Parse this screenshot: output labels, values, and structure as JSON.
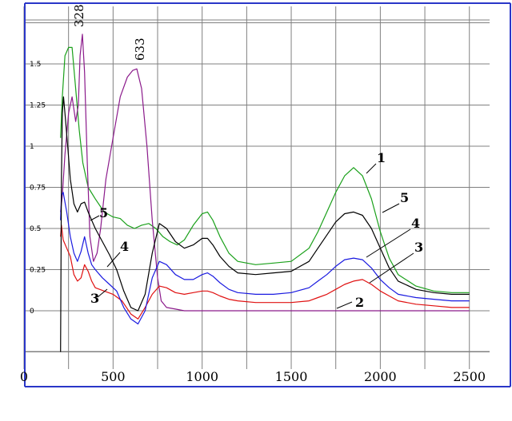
{
  "chart_data": {
    "type": "line",
    "title": "",
    "xlabel": "",
    "ylabel": "",
    "xlim": [
      0,
      2600
    ],
    "ylim": [
      -0.3,
      1.85
    ],
    "grid": true,
    "x_ticks": [
      "0",
      "500",
      "1000",
      "1500",
      "2000",
      "2500"
    ],
    "x_tick_values": [
      0,
      500,
      1000,
      1500,
      2000,
      2500
    ],
    "y_ticks": [
      "1.5",
      "1.25",
      "1",
      "0.75",
      "0.5",
      "0.25",
      "0"
    ],
    "y_tick_values": [
      1.5,
      1.25,
      1,
      0.75,
      0.5,
      0.25,
      0
    ],
    "series": [
      {
        "name": "1",
        "color": "#1aa01a",
        "x": [
          205,
          215,
          230,
          250,
          270,
          290,
          310,
          330,
          360,
          400,
          450,
          500,
          540,
          580,
          620,
          660,
          700,
          740,
          780,
          820,
          860,
          900,
          950,
          1000,
          1030,
          1060,
          1100,
          1150,
          1200,
          1300,
          1400,
          1500,
          1600,
          1650,
          1700,
          1750,
          1800,
          1850,
          1900,
          1950,
          2000,
          2050,
          2100,
          2200,
          2300,
          2400,
          2500
        ],
        "y": [
          1.05,
          1.3,
          1.55,
          1.6,
          1.6,
          1.35,
          1.1,
          0.9,
          0.75,
          0.68,
          0.6,
          0.57,
          0.56,
          0.52,
          0.5,
          0.52,
          0.53,
          0.5,
          0.45,
          0.42,
          0.4,
          0.43,
          0.52,
          0.59,
          0.6,
          0.55,
          0.45,
          0.35,
          0.3,
          0.28,
          0.29,
          0.3,
          0.38,
          0.48,
          0.6,
          0.72,
          0.82,
          0.87,
          0.82,
          0.68,
          0.48,
          0.32,
          0.22,
          0.15,
          0.12,
          0.11,
          0.11
        ]
      },
      {
        "name": "2",
        "color": "#8b1a8b",
        "x": [
          205,
          215,
          230,
          250,
          270,
          290,
          305,
          315,
          328,
          340,
          355,
          370,
          390,
          410,
          430,
          460,
          500,
          540,
          580,
          610,
          633,
          660,
          690,
          720,
          750,
          770,
          800,
          850,
          900,
          1000,
          1200,
          1500,
          1800,
          2100,
          2400,
          2500
        ],
        "y": [
          0.6,
          0.7,
          0.95,
          1.2,
          1.3,
          1.15,
          1.25,
          1.55,
          1.68,
          1.45,
          0.9,
          0.45,
          0.3,
          0.35,
          0.5,
          0.8,
          1.05,
          1.3,
          1.42,
          1.46,
          1.47,
          1.35,
          1.0,
          0.55,
          0.2,
          0.06,
          0.02,
          0.01,
          0.0,
          0.0,
          0.0,
          0.0,
          0.0,
          0.0,
          0.0,
          0.0
        ]
      },
      {
        "name": "3",
        "color": "#e01010",
        "x": [
          205,
          210,
          220,
          240,
          260,
          280,
          300,
          320,
          340,
          360,
          380,
          400,
          450,
          500,
          550,
          600,
          640,
          680,
          720,
          760,
          800,
          850,
          900,
          950,
          1000,
          1030,
          1060,
          1100,
          1150,
          1200,
          1300,
          1400,
          1500,
          1600,
          1650,
          1700,
          1750,
          1800,
          1850,
          1900,
          1950,
          2000,
          2050,
          2100,
          2200,
          2300,
          2400,
          2500
        ],
        "y": [
          0.45,
          0.52,
          0.43,
          0.38,
          0.33,
          0.22,
          0.18,
          0.2,
          0.28,
          0.24,
          0.18,
          0.14,
          0.12,
          0.1,
          0.06,
          -0.02,
          -0.05,
          0.02,
          0.1,
          0.15,
          0.14,
          0.11,
          0.1,
          0.11,
          0.12,
          0.12,
          0.11,
          0.09,
          0.07,
          0.06,
          0.05,
          0.05,
          0.05,
          0.06,
          0.08,
          0.1,
          0.13,
          0.16,
          0.18,
          0.19,
          0.16,
          0.12,
          0.09,
          0.06,
          0.04,
          0.03,
          0.02,
          0.02
        ]
      },
      {
        "name": "4",
        "color": "#1a1ae0",
        "x": [
          205,
          210,
          220,
          240,
          260,
          280,
          300,
          320,
          340,
          360,
          380,
          400,
          440,
          480,
          520,
          560,
          600,
          640,
          680,
          720,
          760,
          800,
          850,
          900,
          950,
          1000,
          1030,
          1060,
          1100,
          1150,
          1200,
          1300,
          1400,
          1500,
          1600,
          1650,
          1700,
          1750,
          1800,
          1850,
          1900,
          1950,
          2000,
          2050,
          2100,
          2200,
          2300,
          2400,
          2500
        ],
        "y": [
          0.55,
          0.7,
          0.72,
          0.6,
          0.45,
          0.35,
          0.3,
          0.36,
          0.45,
          0.35,
          0.28,
          0.25,
          0.2,
          0.16,
          0.12,
          0.02,
          -0.05,
          -0.08,
          0.0,
          0.2,
          0.3,
          0.28,
          0.22,
          0.19,
          0.19,
          0.22,
          0.23,
          0.21,
          0.17,
          0.13,
          0.11,
          0.1,
          0.1,
          0.11,
          0.14,
          0.18,
          0.22,
          0.27,
          0.31,
          0.32,
          0.31,
          0.26,
          0.19,
          0.14,
          0.1,
          0.08,
          0.07,
          0.06,
          0.06
        ]
      },
      {
        "name": "5",
        "color": "#000000",
        "x": [
          205,
          210,
          215,
          222,
          230,
          245,
          260,
          280,
          300,
          320,
          340,
          360,
          380,
          400,
          440,
          480,
          520,
          560,
          600,
          640,
          680,
          720,
          760,
          800,
          850,
          900,
          950,
          1000,
          1030,
          1060,
          1100,
          1150,
          1200,
          1300,
          1400,
          1500,
          1600,
          1650,
          1700,
          1750,
          1800,
          1850,
          1900,
          1950,
          2000,
          2050,
          2100,
          2200,
          2300,
          2400,
          2500
        ],
        "y": [
          -0.25,
          0.8,
          1.2,
          1.3,
          1.2,
          1.0,
          0.8,
          0.65,
          0.6,
          0.65,
          0.66,
          0.6,
          0.55,
          0.5,
          0.42,
          0.34,
          0.25,
          0.12,
          0.02,
          0.0,
          0.1,
          0.35,
          0.53,
          0.5,
          0.42,
          0.38,
          0.4,
          0.44,
          0.44,
          0.4,
          0.33,
          0.27,
          0.23,
          0.22,
          0.23,
          0.24,
          0.3,
          0.38,
          0.46,
          0.54,
          0.59,
          0.6,
          0.58,
          0.5,
          0.38,
          0.26,
          0.18,
          0.13,
          0.11,
          0.1,
          0.1
        ]
      }
    ],
    "annotations": [
      {
        "text": "328",
        "x": 328
      },
      {
        "text": "633",
        "x": 633
      }
    ],
    "curve_labels": [
      "1",
      "2",
      "3",
      "4",
      "5",
      "5",
      "4",
      "3"
    ]
  }
}
